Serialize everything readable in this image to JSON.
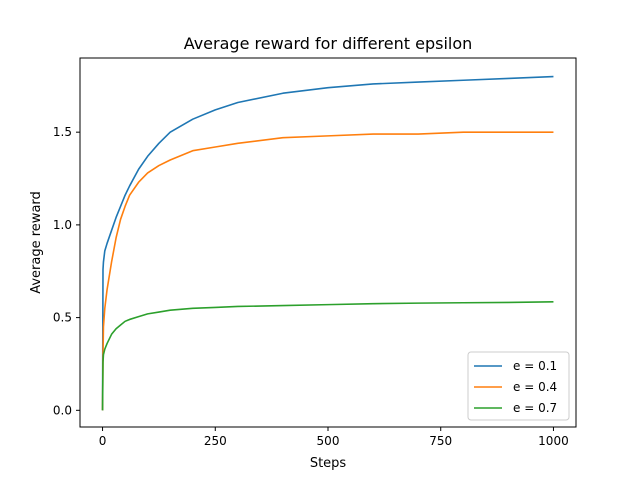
{
  "chart_data": {
    "type": "line",
    "title": "Average reward for different epsilon",
    "xlabel": "Steps",
    "ylabel": "Average reward",
    "xlim": [
      -50,
      1050
    ],
    "ylim": [
      -0.09,
      1.9
    ],
    "xticks": [
      0,
      250,
      500,
      750,
      1000
    ],
    "xtick_labels": [
      "0",
      "250",
      "500",
      "750",
      "1000"
    ],
    "yticks": [
      0.0,
      0.5,
      1.0,
      1.5
    ],
    "ytick_labels": [
      "0.0",
      "0.5",
      "1.0",
      "1.5"
    ],
    "grid": false,
    "legend_position": "bottom-right",
    "x": [
      0,
      1,
      2,
      5,
      10,
      20,
      30,
      40,
      50,
      60,
      80,
      100,
      125,
      150,
      200,
      250,
      300,
      400,
      500,
      600,
      700,
      800,
      900,
      1000
    ],
    "series": [
      {
        "name": "e = 0.1",
        "color": "#1f77b4",
        "values": [
          0.0,
          0.76,
          0.8,
          0.86,
          0.9,
          0.97,
          1.04,
          1.1,
          1.16,
          1.21,
          1.3,
          1.37,
          1.44,
          1.5,
          1.57,
          1.62,
          1.66,
          1.71,
          1.74,
          1.76,
          1.77,
          1.78,
          1.79,
          1.8
        ]
      },
      {
        "name": "e = 0.4",
        "color": "#ff7f0e",
        "values": [
          0.0,
          0.3,
          0.45,
          0.55,
          0.65,
          0.8,
          0.93,
          1.03,
          1.1,
          1.16,
          1.23,
          1.28,
          1.32,
          1.35,
          1.4,
          1.42,
          1.44,
          1.47,
          1.48,
          1.49,
          1.49,
          1.5,
          1.5,
          1.5
        ]
      },
      {
        "name": "e = 0.7",
        "color": "#2ca02c",
        "values": [
          0.0,
          0.26,
          0.3,
          0.33,
          0.36,
          0.41,
          0.44,
          0.46,
          0.48,
          0.49,
          0.505,
          0.52,
          0.53,
          0.54,
          0.55,
          0.555,
          0.56,
          0.565,
          0.57,
          0.575,
          0.578,
          0.58,
          0.582,
          0.585
        ]
      }
    ]
  }
}
